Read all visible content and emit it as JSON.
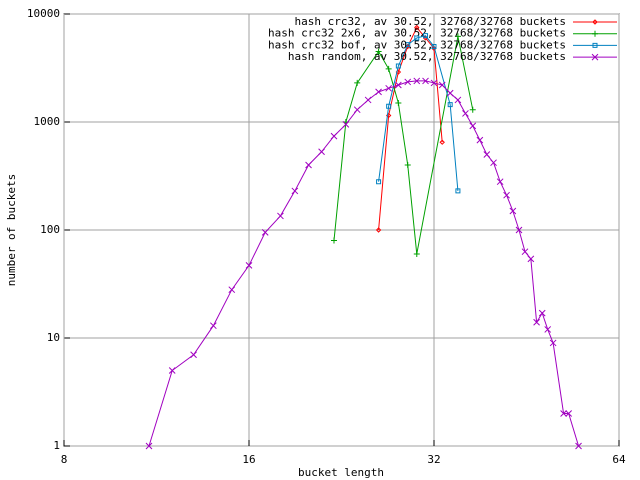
{
  "chart_data": {
    "type": "line",
    "xlabel": "bucket length",
    "ylabel": "number of buckets",
    "xscale": "log",
    "yscale": "log",
    "xlim": [
      8,
      64
    ],
    "xticks": [
      8,
      16,
      32,
      64
    ],
    "ylim": [
      1,
      10000
    ],
    "yticks": [
      1,
      10,
      100,
      1000,
      10000
    ],
    "grid": true,
    "legend": "top-right",
    "series": [
      {
        "name": "hash crc32, av 30.52, 32768/32768 buckets",
        "color": "#ff0000",
        "marker": "diamond",
        "x": [
          26,
          27,
          28,
          29,
          30,
          31,
          32,
          33
        ],
        "values": [
          100,
          1150,
          2900,
          5000,
          7500,
          6000,
          4800,
          650
        ]
      },
      {
        "name": "hash crc32 2x6, av 30.52, 32768/32768 buckets",
        "color": "#00a000",
        "marker": "plus",
        "x": [
          22,
          23,
          24,
          26,
          27,
          28,
          29,
          30,
          35,
          37
        ],
        "values": [
          80,
          1000,
          2300,
          4500,
          3100,
          1500,
          400,
          60,
          6200,
          1300
        ]
      },
      {
        "name": "hash crc32 bof, av 30.52, 32768/32768 buckets",
        "color": "#0080c0",
        "marker": "square",
        "x": [
          26,
          27,
          28,
          29,
          30,
          31,
          32,
          34,
          35
        ],
        "values": [
          280,
          1400,
          3300,
          5200,
          6000,
          6300,
          5000,
          1450,
          230
        ]
      },
      {
        "name": "hash random, av 30.52, 32768/32768 buckets",
        "color": "#a000c0",
        "marker": "cross",
        "x": [
          11,
          12,
          13,
          14,
          15,
          16,
          17,
          18,
          19,
          20,
          21,
          22,
          23,
          24,
          25,
          26,
          27,
          28,
          29,
          30,
          31,
          32,
          33,
          34,
          35,
          36,
          37,
          38,
          39,
          40,
          41,
          42,
          43,
          44,
          45,
          46,
          47,
          48,
          49,
          50,
          52,
          53,
          55
        ],
        "values": [
          1,
          5,
          7,
          13,
          28,
          47,
          95,
          135,
          230,
          400,
          530,
          740,
          950,
          1300,
          1600,
          1900,
          2050,
          2200,
          2350,
          2400,
          2400,
          2300,
          2200,
          1850,
          1600,
          1200,
          920,
          680,
          500,
          420,
          280,
          210,
          150,
          100,
          63,
          54,
          14,
          17,
          12,
          9,
          2,
          2,
          1
        ]
      }
    ]
  }
}
